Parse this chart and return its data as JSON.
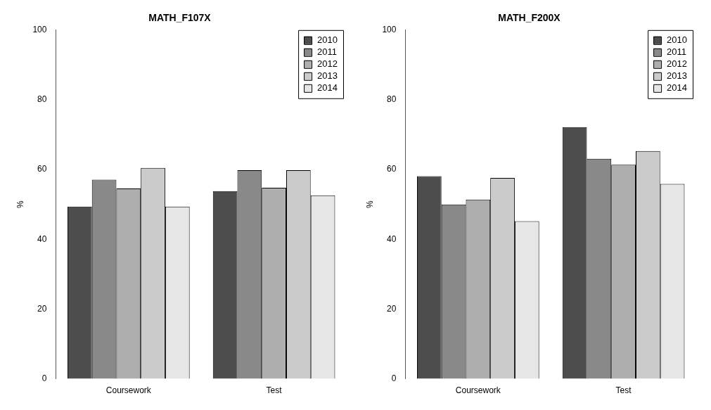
{
  "chart_data": [
    {
      "type": "bar",
      "title": "MATH_F107X",
      "ylabel": "%",
      "categories": [
        "Coursework",
        "Test"
      ],
      "ylim": [
        0,
        100
      ],
      "yticks": [
        0,
        20,
        40,
        60,
        80,
        100
      ],
      "grid": false,
      "legend": "top right",
      "series": [
        {
          "name": "2010",
          "color": "#4d4d4d",
          "values": [
            49.4,
            53.8
          ]
        },
        {
          "name": "2011",
          "color": "#898989",
          "values": [
            57.1,
            59.8
          ]
        },
        {
          "name": "2012",
          "color": "#aeaeae",
          "values": [
            54.6,
            54.8
          ]
        },
        {
          "name": "2013",
          "color": "#cbcbcb",
          "values": [
            60.5,
            59.8
          ]
        },
        {
          "name": "2014",
          "color": "#e6e6e6",
          "values": [
            49.4,
            52.6
          ]
        }
      ]
    },
    {
      "type": "bar",
      "title": "MATH_F200X",
      "ylabel": "%",
      "categories": [
        "Coursework",
        "Test"
      ],
      "ylim": [
        0,
        100
      ],
      "yticks": [
        0,
        20,
        40,
        60,
        80,
        100
      ],
      "grid": false,
      "legend": "top right",
      "series": [
        {
          "name": "2010",
          "color": "#4d4d4d",
          "values": [
            58.1,
            72.2
          ]
        },
        {
          "name": "2011",
          "color": "#898989",
          "values": [
            50.0,
            63.1
          ]
        },
        {
          "name": "2012",
          "color": "#aeaeae",
          "values": [
            51.4,
            61.4
          ]
        },
        {
          "name": "2013",
          "color": "#cbcbcb",
          "values": [
            57.6,
            65.3
          ]
        },
        {
          "name": "2014",
          "color": "#e6e6e6",
          "values": [
            45.2,
            55.9
          ]
        }
      ]
    }
  ]
}
